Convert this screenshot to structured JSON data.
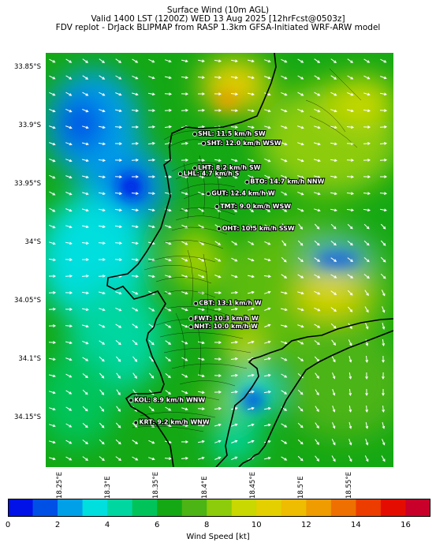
{
  "header": {
    "line1": "Surface Wind (10m AGL)",
    "line2": "Valid 1400 LST (1200Z) WED 13 Aug 2025 [12hrFcst@0503z]",
    "line3": "FDV replot - DrJack BLIPMAP from RASP 1.3km GFSA-Initiated WRF-ARW model"
  },
  "axes": {
    "lat_labels": [
      "33.85°S",
      "33.9°S",
      "33.95°S",
      "34°S",
      "34.05°S",
      "34.1°S",
      "34.15°S"
    ],
    "lon_labels": [
      "18.25°E",
      "18.3°E",
      "18.35°E",
      "18.4°E",
      "18.45°E",
      "18.5°E",
      "18.55°E"
    ]
  },
  "stations": [
    {
      "id": "SHL",
      "label": "SHL: 11.5 km/h SW",
      "lon": 18.389,
      "lat": -33.907
    },
    {
      "id": "SHT",
      "label": "SHT: 12.0 km/h WSW",
      "lon": 18.398,
      "lat": -33.915
    },
    {
      "id": "LHT",
      "label": "LHT: 8.2 km/h SW",
      "lon": 18.389,
      "lat": -33.936
    },
    {
      "id": "LHL",
      "label": "LHL: 4.7 km/h S",
      "lon": 18.374,
      "lat": -33.941
    },
    {
      "id": "BTO",
      "label": "BTO: 14.7 km/h NNW",
      "lon": 18.443,
      "lat": -33.948
    },
    {
      "id": "GUT",
      "label": "GUT: 12.4 km/h W",
      "lon": 18.403,
      "lat": -33.958
    },
    {
      "id": "TMT",
      "label": "TMT: 9.0 km/h WSW",
      "lon": 18.412,
      "lat": -33.969
    },
    {
      "id": "OHT",
      "label": "OHT: 10.5 km/h SSW",
      "lon": 18.414,
      "lat": -33.988
    },
    {
      "id": "CBT",
      "label": "CBT: 13.1 km/h W",
      "lon": 18.39,
      "lat": -34.052
    },
    {
      "id": "FWT",
      "label": "FWT: 10.3 km/h W",
      "lon": 18.385,
      "lat": -34.065
    },
    {
      "id": "NHT",
      "label": "NHT: 10.0 km/h W",
      "lon": 18.385,
      "lat": -34.072
    },
    {
      "id": "KOL",
      "label": "KOL: 8.9 km/h WNW",
      "lon": 18.323,
      "lat": -34.135
    },
    {
      "id": "KRT",
      "label": "KRT: 9.2 km/h WNW",
      "lon": 18.328,
      "lat": -34.154
    }
  ],
  "colorbar": {
    "title": "Wind Speed [kt]",
    "ticks": [
      "0",
      "2",
      "4",
      "6",
      "8",
      "10",
      "12",
      "14",
      "16"
    ],
    "range": [
      0,
      17
    ],
    "colors": [
      "#0012e8",
      "#0050e6",
      "#00a0e8",
      "#00dede",
      "#00d6a0",
      "#00c45a",
      "#14a814",
      "#4cb414",
      "#8ccc0a",
      "#c8d800",
      "#e4d000",
      "#eebc00",
      "#ee9c00",
      "#ee7000",
      "#ec3c00",
      "#e40c00",
      "#c8002a"
    ]
  }
}
